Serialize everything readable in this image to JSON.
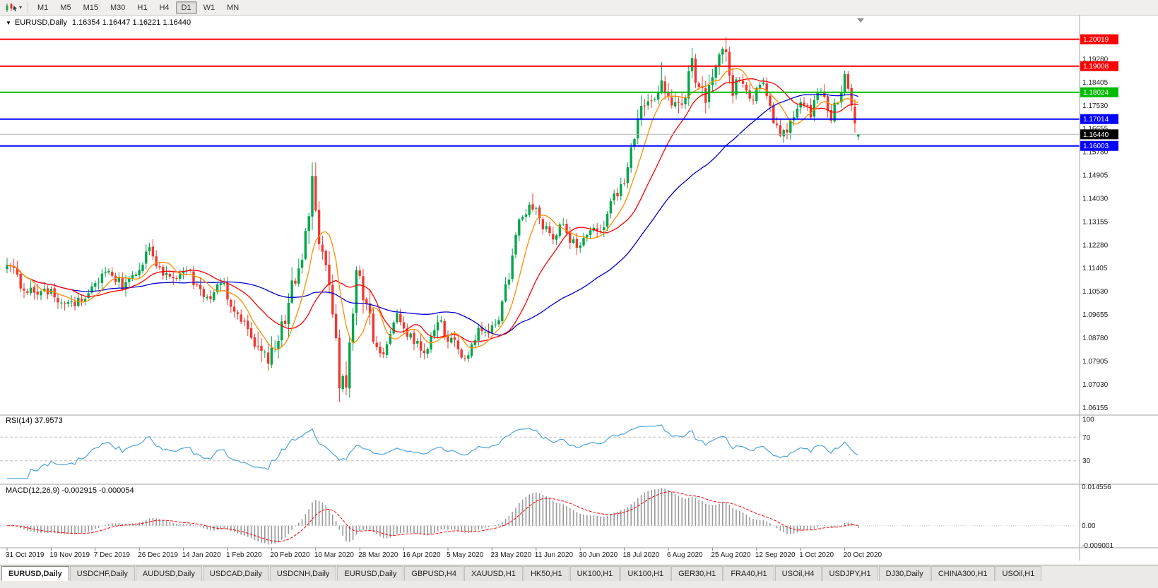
{
  "toolbar": {
    "timeframes": [
      "M1",
      "M5",
      "M15",
      "M30",
      "H1",
      "H4",
      "D1",
      "W1",
      "MN"
    ],
    "active_timeframe": "D1",
    "chart_type_icon": "candlestick-chart",
    "dropdown_glyph": "▾"
  },
  "chart": {
    "collapse_glyph": "▼",
    "title": "EURUSD,Daily",
    "ohlc_text": "1.16354 1.16447 1.16221 1.16440",
    "open": "1.16354",
    "high": "1.16447",
    "low": "1.16221",
    "close": "1.16440"
  },
  "price_axis": {
    "labels": [
      {
        "text": "1.19280",
        "price": 1.1928
      },
      {
        "text": "1.18405",
        "price": 1.18405
      },
      {
        "text": "1.17530",
        "price": 1.1753
      },
      {
        "text": "1.16655",
        "price": 1.16655
      },
      {
        "text": "1.15780",
        "price": 1.1578
      },
      {
        "text": "1.14905",
        "price": 1.14905
      },
      {
        "text": "1.14030",
        "price": 1.1403
      },
      {
        "text": "1.13155",
        "price": 1.13155
      },
      {
        "text": "1.12280",
        "price": 1.1228
      },
      {
        "text": "1.11405",
        "price": 1.11405
      },
      {
        "text": "1.10530",
        "price": 1.1053
      },
      {
        "text": "1.09655",
        "price": 1.09655
      },
      {
        "text": "1.08780",
        "price": 1.0878
      },
      {
        "text": "1.07905",
        "price": 1.07905
      },
      {
        "text": "1.07030",
        "price": 1.0703
      },
      {
        "text": "1.06155",
        "price": 1.06155
      }
    ],
    "levels": [
      {
        "text": "1.20019",
        "price": 1.20019,
        "color": "#FF0000",
        "kind": "hline"
      },
      {
        "text": "1.19008",
        "price": 1.19008,
        "color": "#FF0000",
        "kind": "hline"
      },
      {
        "text": "1.18024",
        "price": 1.18024,
        "color": "#00BB00",
        "kind": "hline"
      },
      {
        "text": "1.17014",
        "price": 1.17014,
        "color": "#0000FF",
        "kind": "hline"
      },
      {
        "text": "1.16440",
        "price": 1.1644,
        "color": "#000000",
        "kind": "current"
      },
      {
        "text": "1.16003",
        "price": 1.16003,
        "color": "#0000FF",
        "kind": "hline"
      }
    ]
  },
  "chart_data": {
    "type": "candlestick",
    "symbol": "EURUSD",
    "period": "Daily",
    "bars": 252,
    "price_range": {
      "max": 1.207,
      "min": 1.0595
    },
    "anchors": [
      [
        0,
        1.1152
      ],
      [
        4,
        1.1085
      ],
      [
        8,
        1.103
      ],
      [
        12,
        1.1058
      ],
      [
        16,
        1.1015
      ],
      [
        20,
        1.1
      ],
      [
        24,
        1.1062
      ],
      [
        29,
        1.1118
      ],
      [
        34,
        1.108
      ],
      [
        38,
        1.1125
      ],
      [
        42,
        1.1212
      ],
      [
        46,
        1.112
      ],
      [
        50,
        1.1108
      ],
      [
        53,
        1.1138
      ],
      [
        57,
        1.106
      ],
      [
        60,
        1.1022
      ],
      [
        63,
        1.1093
      ],
      [
        66,
        1.1
      ],
      [
        70,
        1.0948
      ],
      [
        74,
        1.0838
      ],
      [
        77,
        1.0786
      ],
      [
        80,
        1.0848
      ],
      [
        83,
        1.1026
      ],
      [
        86,
        1.114
      ],
      [
        88,
        1.1285
      ],
      [
        90,
        1.1446
      ],
      [
        92,
        1.1184
      ],
      [
        94,
        1.118
      ],
      [
        96,
        1.0992
      ],
      [
        98,
        1.069
      ],
      [
        100,
        1.0725
      ],
      [
        103,
        1.113
      ],
      [
        105,
        1.1034
      ],
      [
        107,
        1.092
      ],
      [
        110,
        1.08
      ],
      [
        113,
        1.089
      ],
      [
        115,
        1.0975
      ],
      [
        118,
        1.0905
      ],
      [
        121,
        1.0862
      ],
      [
        124,
        1.0822
      ],
      [
        127,
        1.0955
      ],
      [
        130,
        1.088
      ],
      [
        133,
        1.0835
      ],
      [
        136,
        1.0808
      ],
      [
        139,
        1.0918
      ],
      [
        142,
        1.0888
      ],
      [
        145,
        1.0962
      ],
      [
        148,
        1.1105
      ],
      [
        151,
        1.1335
      ],
      [
        155,
        1.1375
      ],
      [
        158,
        1.129
      ],
      [
        161,
        1.1255
      ],
      [
        164,
        1.13
      ],
      [
        166,
        1.122
      ],
      [
        169,
        1.1245
      ],
      [
        172,
        1.127
      ],
      [
        175,
        1.1285
      ],
      [
        179,
        1.1405
      ],
      [
        182,
        1.148
      ],
      [
        184,
        1.1575
      ],
      [
        187,
        1.172
      ],
      [
        190,
        1.1778
      ],
      [
        193,
        1.1862
      ],
      [
        196,
        1.176
      ],
      [
        199,
        1.1738
      ],
      [
        202,
        1.1925
      ],
      [
        204,
        1.1797
      ],
      [
        206,
        1.1785
      ],
      [
        208,
        1.1832
      ],
      [
        210,
        1.194
      ],
      [
        212,
        1.1938
      ],
      [
        214,
        1.1818
      ],
      [
        216,
        1.186
      ],
      [
        218,
        1.1812
      ],
      [
        220,
        1.1788
      ],
      [
        222,
        1.1848
      ],
      [
        224,
        1.1788
      ],
      [
        226,
        1.1707
      ],
      [
        229,
        1.1638
      ],
      [
        231,
        1.1688
      ],
      [
        233,
        1.1722
      ],
      [
        235,
        1.1768
      ],
      [
        237,
        1.1722
      ],
      [
        239,
        1.1818
      ],
      [
        241,
        1.1772
      ],
      [
        243,
        1.1718
      ],
      [
        245,
        1.1768
      ],
      [
        247,
        1.1852
      ],
      [
        248,
        1.182
      ],
      [
        249,
        1.1742
      ],
      [
        250,
        1.1672
      ],
      [
        251,
        1.1644
      ]
    ],
    "spikes": [
      {
        "i": 90,
        "h": 1.1495
      },
      {
        "i": 98,
        "l": 1.0636
      },
      {
        "i": 103,
        "h": 1.1147
      },
      {
        "i": 155,
        "h": 1.1422
      },
      {
        "i": 193,
        "h": 1.1916
      },
      {
        "i": 202,
        "h": 1.1966
      },
      {
        "i": 212,
        "h": 1.2011
      },
      {
        "i": 229,
        "l": 1.1612
      },
      {
        "i": 247,
        "h": 1.1881
      },
      {
        "i": 250,
        "l": 1.165
      }
    ],
    "current_bar": {
      "open": 1.16354,
      "high": 1.16447,
      "low": 1.16221,
      "close": 1.1644
    },
    "date_labels": [
      "31 Oct 2019",
      "19 Nov 2019",
      "7 Dec 2019",
      "26 Dec 2019",
      "14 Jan 2020",
      "1 Feb 2020",
      "20 Feb 2020",
      "10 Mar 2020",
      "28 Mar 2020",
      "16 Apr 2020",
      "5 May 2020",
      "23 May 2020",
      "11 Jun 2020",
      "30 Jun 2020",
      "18 Jul 2020",
      "6 Aug 2020",
      "25 Aug 2020",
      "12 Sep 2020",
      "1 Oct 2020",
      "20 Oct 2020"
    ],
    "label_interval": 13,
    "overlays": [
      {
        "name": "ma-fast",
        "period": 8,
        "color": "#FF8C00"
      },
      {
        "name": "ma-mid",
        "period": 20,
        "color": "#FF0000"
      },
      {
        "name": "ma-slow",
        "period": 50,
        "color": "#0000CC"
      }
    ],
    "indicators": [
      {
        "name": "rsi",
        "label": "RSI(14) 37.9573",
        "period": 14,
        "levels": [
          100,
          70,
          30
        ],
        "color": "#4FA3DC"
      },
      {
        "name": "macd",
        "label": "MACD(12,26,9) -0.002915 -0.000054",
        "fast": 12,
        "slow": 26,
        "signal": 9,
        "scale_labels": [
          "0.014556",
          "0.00",
          "-0.009001"
        ]
      }
    ]
  },
  "tabs": [
    {
      "label": "EURUSD,Daily",
      "active": true
    },
    {
      "label": "USDCHF,Daily",
      "active": false
    },
    {
      "label": "AUDUSD,Daily",
      "active": false
    },
    {
      "label": "USDCAD,Daily",
      "active": false
    },
    {
      "label": "USDCNH,Daily",
      "active": false
    },
    {
      "label": "EURUSD,Daily",
      "active": false
    },
    {
      "label": "GBPUSD,H4",
      "active": false
    },
    {
      "label": "XAUUSD,H1",
      "active": false
    },
    {
      "label": "HK50,H1",
      "active": false
    },
    {
      "label": "UK100,H1",
      "active": false
    },
    {
      "label": "UK100,H1",
      "active": false
    },
    {
      "label": "GER30,H1",
      "active": false
    },
    {
      "label": "FRA40,H1",
      "active": false
    },
    {
      "label": "USOil,H4",
      "active": false
    },
    {
      "label": "USDJPY,H1",
      "active": false
    },
    {
      "label": "DJ30,Daily",
      "active": false
    },
    {
      "label": "CHINA300,H1",
      "active": false
    },
    {
      "label": "USOil,H1",
      "active": false
    }
  ],
  "colors": {
    "background": "#FFFFFF",
    "up_candle": "#00A64A",
    "down_candle": "#F03730",
    "ma_fast": "#FF8C00",
    "ma_mid": "#FF0000",
    "ma_slow": "#0000CC",
    "rsi_line": "#4FA3DC",
    "macd_histogram": "#9A9A9A",
    "macd_signal": "#FF0000",
    "axis_text": "#1A1A1A",
    "current_price_line": "#B4B4B4",
    "separator": "#A0A0A0"
  }
}
